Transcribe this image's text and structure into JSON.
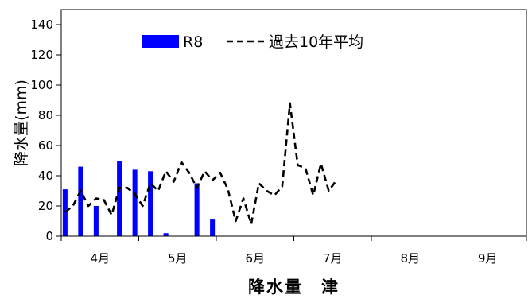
{
  "chart_data": {
    "type": "bar",
    "title": "",
    "xlabel": "降水量　津",
    "ylabel": "降水量(mm)",
    "ylim": [
      0,
      150
    ],
    "yticks": [
      0,
      20,
      40,
      60,
      80,
      100,
      120,
      140
    ],
    "ytick_labels": [
      "0",
      "20",
      "40",
      "60",
      "80",
      "100",
      "120",
      "140"
    ],
    "x_periods": 60,
    "month_labels": [
      {
        "label": "4月",
        "center": 5
      },
      {
        "label": "5月",
        "center": 15
      },
      {
        "label": "6月",
        "center": 25
      },
      {
        "label": "7月",
        "center": 35
      },
      {
        "label": "8月",
        "center": 45
      },
      {
        "label": "9月",
        "center": 55
      }
    ],
    "legend": {
      "position": "top",
      "entries": [
        "R8",
        "過去10年平均"
      ]
    },
    "grid": false,
    "series": [
      {
        "name": "R8",
        "kind": "bar",
        "color": "#0000ff",
        "points": [
          [
            0,
            31
          ],
          [
            2,
            46
          ],
          [
            4,
            20
          ],
          [
            7,
            50
          ],
          [
            9,
            44
          ],
          [
            11,
            43
          ],
          [
            13,
            2
          ],
          [
            17,
            35
          ],
          [
            19,
            11
          ]
        ]
      },
      {
        "name": "過去10年平均",
        "kind": "line",
        "style": "dashed",
        "color": "#000000",
        "values": [
          16,
          20,
          30,
          20,
          25,
          24,
          14,
          32,
          32,
          28,
          20,
          35,
          30,
          43,
          36,
          49,
          42,
          32,
          43,
          37,
          42,
          31,
          10,
          25,
          8,
          35,
          30,
          27,
          33,
          88,
          47,
          45,
          27,
          48,
          30,
          37
        ]
      }
    ]
  }
}
